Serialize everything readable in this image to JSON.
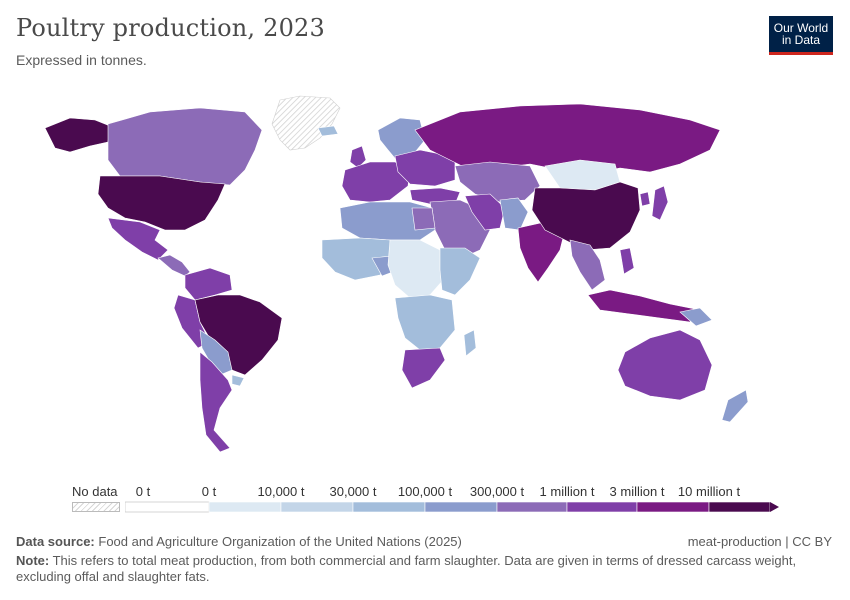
{
  "title": "Poultry production, 2023",
  "subtitle": "Expressed in tonnes.",
  "logo": {
    "line1": "Our World",
    "line2": "in Data"
  },
  "legend": {
    "no_data_label": "No data",
    "bins": [
      {
        "label": "0 t",
        "color": "#ffffff"
      },
      {
        "label": "0 t",
        "color": "#dde9f3"
      },
      {
        "label": "10,000 t",
        "color": "#c3d5e8"
      },
      {
        "label": "30,000 t",
        "color": "#a3bddb"
      },
      {
        "label": "100,000 t",
        "color": "#8b9ccd"
      },
      {
        "label": "300,000 t",
        "color": "#8c6bb7"
      },
      {
        "label": "1 million t",
        "color": "#7f3fa8"
      },
      {
        "label": "3 million t",
        "color": "#7a1a83"
      },
      {
        "label": "10 million t",
        "color": "#4a0a4f"
      }
    ]
  },
  "source": {
    "label": "Data source:",
    "text": "Food and Agriculture Organization of the United Nations (2025)"
  },
  "credit": "meat-production | CC BY",
  "note": {
    "label": "Note:",
    "text": "This refers to total meat production, from both commercial and farm slaughter. Data are given in terms of dressed carcass weight, excluding offal and slaughter fats."
  }
}
